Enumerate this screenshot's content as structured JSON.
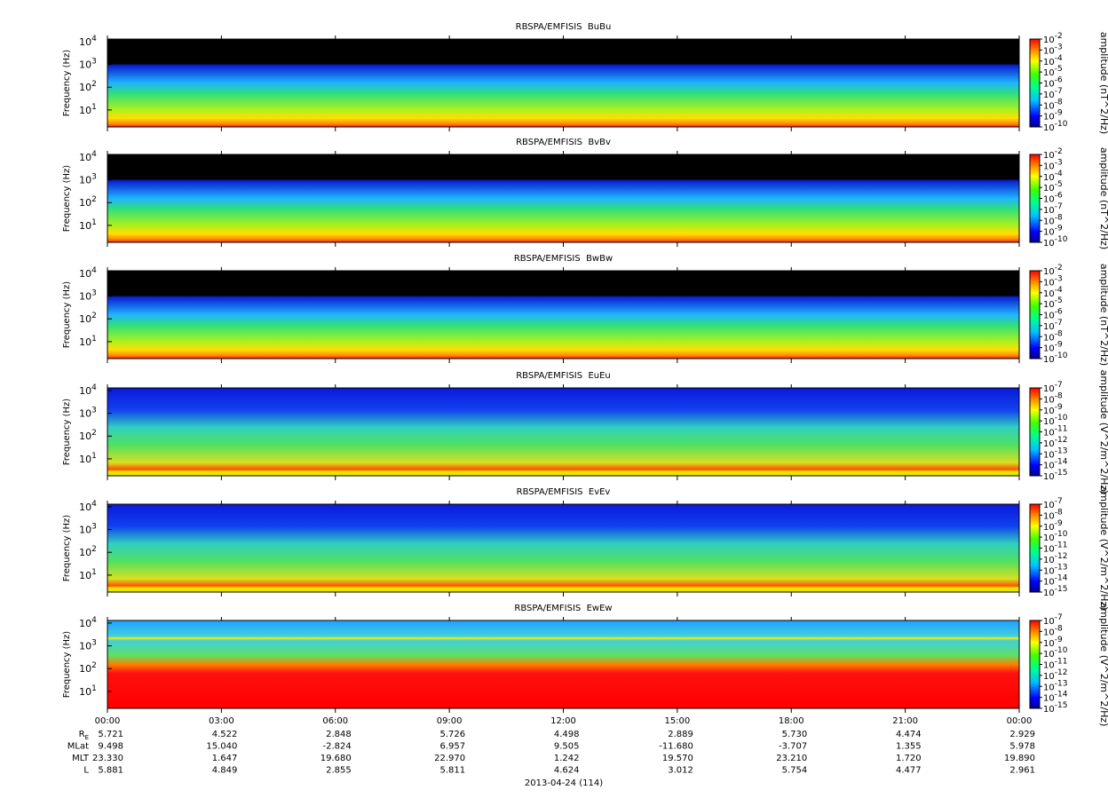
{
  "chart_data": [
    {
      "type": "spectrogram",
      "title": "RBSPA/EMFISIS  BuBu",
      "ylabel": "Frequency (Hz)",
      "log": true,
      "ylim": [
        1.8,
        13000
      ],
      "yticks": [
        {
          "value": 10,
          "label": "10^1"
        },
        {
          "value": 100,
          "label": "10^2"
        },
        {
          "value": 1000,
          "label": "10^3"
        },
        {
          "value": 10000,
          "label": "10^4"
        }
      ],
      "colorbar": {
        "label": "amplitude (nT^2/Hz)",
        "lim": [
          1e-10,
          0.01
        ],
        "ticks": [
          {
            "value": 0.01,
            "label": "10^-2"
          },
          {
            "value": 0.001,
            "label": "10^-3"
          },
          {
            "value": 0.0001,
            "label": "10^-4"
          },
          {
            "value": 1e-05,
            "label": "10^-5"
          },
          {
            "value": 1e-06,
            "label": "10^-6"
          },
          {
            "value": 1e-07,
            "label": "10^-7"
          },
          {
            "value": 1e-08,
            "label": "10^-8"
          },
          {
            "value": 1e-09,
            "label": "10^-9"
          },
          {
            "value": 1e-10,
            "label": "10^-10"
          }
        ]
      }
    },
    {
      "type": "spectrogram",
      "title": "RBSPA/EMFISIS  BvBv",
      "ylabel": "Frequency (Hz)",
      "log": true,
      "ylim": [
        1.8,
        13000
      ],
      "yticks": [
        {
          "value": 10,
          "label": "10^1"
        },
        {
          "value": 100,
          "label": "10^2"
        },
        {
          "value": 1000,
          "label": "10^3"
        },
        {
          "value": 10000,
          "label": "10^4"
        }
      ],
      "colorbar": {
        "label": "amplitude (nT^2/Hz)",
        "lim": [
          1e-10,
          0.01
        ],
        "ticks": [
          {
            "value": 0.01,
            "label": "10^-2"
          },
          {
            "value": 0.001,
            "label": "10^-3"
          },
          {
            "value": 0.0001,
            "label": "10^-4"
          },
          {
            "value": 1e-05,
            "label": "10^-5"
          },
          {
            "value": 1e-06,
            "label": "10^-6"
          },
          {
            "value": 1e-07,
            "label": "10^-7"
          },
          {
            "value": 1e-08,
            "label": "10^-8"
          },
          {
            "value": 1e-09,
            "label": "10^-9"
          },
          {
            "value": 1e-10,
            "label": "10^-10"
          }
        ]
      }
    },
    {
      "type": "spectrogram",
      "title": "RBSPA/EMFISIS  BwBw",
      "ylabel": "Frequency (Hz)",
      "log": true,
      "ylim": [
        1.8,
        13000
      ],
      "yticks": [
        {
          "value": 10,
          "label": "10^1"
        },
        {
          "value": 100,
          "label": "10^2"
        },
        {
          "value": 1000,
          "label": "10^3"
        },
        {
          "value": 10000,
          "label": "10^4"
        }
      ],
      "colorbar": {
        "label": "amplitude (nT^2/Hz)",
        "lim": [
          1e-10,
          0.01
        ],
        "ticks": [
          {
            "value": 0.01,
            "label": "10^-2"
          },
          {
            "value": 0.001,
            "label": "10^-3"
          },
          {
            "value": 0.0001,
            "label": "10^-4"
          },
          {
            "value": 1e-05,
            "label": "10^-5"
          },
          {
            "value": 1e-06,
            "label": "10^-6"
          },
          {
            "value": 1e-07,
            "label": "10^-7"
          },
          {
            "value": 1e-08,
            "label": "10^-8"
          },
          {
            "value": 1e-09,
            "label": "10^-9"
          },
          {
            "value": 1e-10,
            "label": "10^-10"
          }
        ]
      }
    },
    {
      "type": "spectrogram",
      "title": "RBSPA/EMFISIS  EuEu",
      "ylabel": "Frequency (Hz)",
      "log": true,
      "ylim": [
        1.8,
        13000
      ],
      "yticks": [
        {
          "value": 10,
          "label": "10^1"
        },
        {
          "value": 100,
          "label": "10^2"
        },
        {
          "value": 1000,
          "label": "10^3"
        },
        {
          "value": 10000,
          "label": "10^4"
        }
      ],
      "colorbar": {
        "label": "amplitude (V^2/m^2/Hz)",
        "lim": [
          1e-15,
          1e-07
        ],
        "ticks": [
          {
            "value": 1e-07,
            "label": "10^-7"
          },
          {
            "value": 1e-08,
            "label": "10^-8"
          },
          {
            "value": 1e-09,
            "label": "10^-9"
          },
          {
            "value": 1e-10,
            "label": "10^-10"
          },
          {
            "value": 1e-11,
            "label": "10^-11"
          },
          {
            "value": 1e-12,
            "label": "10^-12"
          },
          {
            "value": 1e-13,
            "label": "10^-13"
          },
          {
            "value": 1e-14,
            "label": "10^-14"
          },
          {
            "value": 1e-15,
            "label": "10^-15"
          }
        ]
      }
    },
    {
      "type": "spectrogram",
      "title": "RBSPA/EMFISIS  EvEv",
      "ylabel": "Frequency (Hz)",
      "log": true,
      "ylim": [
        1.8,
        13000
      ],
      "yticks": [
        {
          "value": 10,
          "label": "10^1"
        },
        {
          "value": 100,
          "label": "10^2"
        },
        {
          "value": 1000,
          "label": "10^3"
        },
        {
          "value": 10000,
          "label": "10^4"
        }
      ],
      "colorbar": {
        "label": "amplitude (V^2/m^2/Hz)",
        "lim": [
          1e-15,
          1e-07
        ],
        "ticks": [
          {
            "value": 1e-07,
            "label": "10^-7"
          },
          {
            "value": 1e-08,
            "label": "10^-8"
          },
          {
            "value": 1e-09,
            "label": "10^-9"
          },
          {
            "value": 1e-10,
            "label": "10^-10"
          },
          {
            "value": 1e-11,
            "label": "10^-11"
          },
          {
            "value": 1e-12,
            "label": "10^-12"
          },
          {
            "value": 1e-13,
            "label": "10^-13"
          },
          {
            "value": 1e-14,
            "label": "10^-14"
          },
          {
            "value": 1e-15,
            "label": "10^-15"
          }
        ]
      }
    },
    {
      "type": "spectrogram",
      "title": "RBSPA/EMFISIS  EwEw",
      "ylabel": "Frequency (Hz)",
      "log": true,
      "ylim": [
        1.8,
        13000
      ],
      "yticks": [
        {
          "value": 10,
          "label": "10^1"
        },
        {
          "value": 100,
          "label": "10^2"
        },
        {
          "value": 1000,
          "label": "10^3"
        },
        {
          "value": 10000,
          "label": "10^4"
        }
      ],
      "colorbar": {
        "label": "amplitude (V^2/m^2/Hz)",
        "lim": [
          1e-15,
          1e-07
        ],
        "ticks": [
          {
            "value": 1e-07,
            "label": "10^-7"
          },
          {
            "value": 1e-08,
            "label": "10^-8"
          },
          {
            "value": 1e-09,
            "label": "10^-9"
          },
          {
            "value": 1e-10,
            "label": "10^-10"
          },
          {
            "value": 1e-11,
            "label": "10^-11"
          },
          {
            "value": 1e-12,
            "label": "10^-12"
          },
          {
            "value": 1e-13,
            "label": "10^-13"
          },
          {
            "value": 1e-14,
            "label": "10^-14"
          },
          {
            "value": 1e-15,
            "label": "10^-15"
          }
        ]
      },
      "xlim": [
        0,
        24
      ],
      "xticks": [
        {
          "value": 0,
          "label": "00:00"
        },
        {
          "value": 3,
          "label": "03:00"
        },
        {
          "value": 6,
          "label": "06:00"
        },
        {
          "value": 9,
          "label": "09:00"
        },
        {
          "value": 12,
          "label": "12:00"
        },
        {
          "value": 15,
          "label": "15:00"
        },
        {
          "value": 18,
          "label": "18:00"
        },
        {
          "value": 21,
          "label": "21:00"
        },
        {
          "value": 24,
          "label": "00:00"
        }
      ],
      "xlabel": "2013-04-24 (114)"
    }
  ],
  "ephemeris": [
    {
      "label": "R",
      "subscript": "E",
      "values": [
        "5.721",
        "4.522",
        "2.848",
        "5.726",
        "4.498",
        "2.889",
        "5.730",
        "4.474",
        "2.929"
      ]
    },
    {
      "label": "MLat",
      "values": [
        "9.498",
        "15.040",
        "-2.824",
        "6.957",
        "9.505",
        "-11.680",
        "-3.707",
        "1.355",
        "5.978"
      ]
    },
    {
      "label": "MLT",
      "values": [
        "23.330",
        "1.647",
        "19.680",
        "22.970",
        "1.242",
        "19.570",
        "23.210",
        "1.720",
        "19.890"
      ]
    },
    {
      "label": "L",
      "values": [
        "5.881",
        "4.849",
        "2.855",
        "5.811",
        "4.624",
        "3.012",
        "5.754",
        "4.477",
        "2.961"
      ]
    }
  ]
}
